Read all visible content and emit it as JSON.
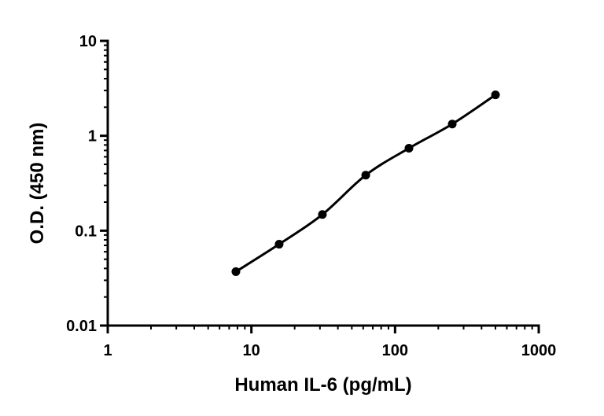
{
  "chart_data": {
    "type": "scatter",
    "xlabel": "Human IL-6 (pg/mL)",
    "ylabel": "O.D. (450 nm)",
    "xscale": "log",
    "yscale": "log",
    "xlim": [
      1,
      1000
    ],
    "ylim": [
      0.01,
      10
    ],
    "x_ticks": [
      "1",
      "10",
      "100",
      "1000"
    ],
    "y_ticks": [
      "0.01",
      "0.1",
      "1",
      "10"
    ],
    "grid": false,
    "legend": "none",
    "series": [
      {
        "points": [
          {
            "x": 7.8,
            "y": 0.037
          },
          {
            "x": 15.6,
            "y": 0.072
          },
          {
            "x": 31.2,
            "y": 0.148
          },
          {
            "x": 62.5,
            "y": 0.385
          },
          {
            "x": 125,
            "y": 0.74
          },
          {
            "x": 250,
            "y": 1.33
          },
          {
            "x": 500,
            "y": 2.7
          }
        ],
        "fit": "curve",
        "color": "#000000"
      }
    ]
  }
}
